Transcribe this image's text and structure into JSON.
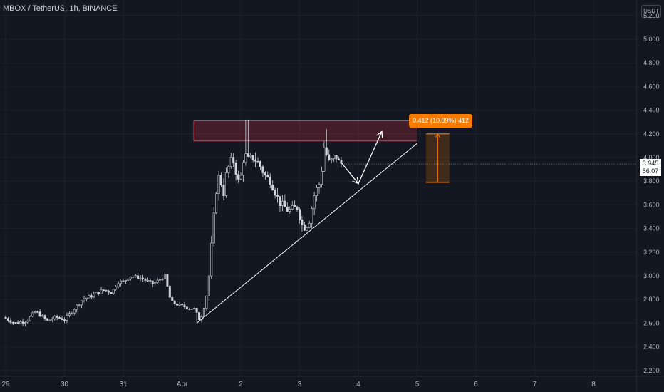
{
  "header": {
    "title": "MBOX / TetherUS, 1h, BINANCE",
    "currency": "USDT"
  },
  "price_badge": {
    "price": "3.945",
    "countdown": "56:07"
  },
  "measure": {
    "label": "0.412 (10.89%) 412",
    "from": 3.79,
    "to": 4.2
  },
  "colors": {
    "background": "#131722",
    "candle": "#d1d4dc",
    "grid": "#1e222d",
    "resistance_zone": "#f23645",
    "measure": "#f57c00",
    "trendline": "#ffffff"
  },
  "chart_data": {
    "type": "candlestick",
    "title": "MBOX / TetherUS, 1h, BINANCE",
    "ylabel": "USDT",
    "ylim": [
      2.15,
      5.3
    ],
    "y_ticks": [
      "2.200",
      "2.400",
      "2.600",
      "2.800",
      "3.000",
      "3.200",
      "3.400",
      "3.600",
      "3.800",
      "4.000",
      "4.200",
      "4.400",
      "4.600",
      "4.800",
      "5.000",
      "5.200"
    ],
    "x_ticks": [
      "29",
      "30",
      "31",
      "Apr",
      "2",
      "3",
      "4",
      "5",
      "6",
      "7",
      "8"
    ],
    "x_tick_day_index": [
      0,
      1,
      2,
      3,
      4,
      5,
      6,
      7,
      8,
      9,
      10
    ],
    "xlim_days": [
      0,
      10.5
    ],
    "price_path": [
      [
        0.0,
        2.65
      ],
      [
        0.2,
        2.6
      ],
      [
        0.4,
        2.62
      ],
      [
        0.55,
        2.7
      ],
      [
        0.75,
        2.62
      ],
      [
        0.9,
        2.65
      ],
      [
        1.05,
        2.63
      ],
      [
        1.2,
        2.72
      ],
      [
        1.35,
        2.8
      ],
      [
        1.5,
        2.83
      ],
      [
        1.7,
        2.88
      ],
      [
        1.85,
        2.86
      ],
      [
        1.95,
        2.95
      ],
      [
        2.05,
        2.95
      ],
      [
        2.15,
        3.0
      ],
      [
        2.35,
        2.98
      ],
      [
        2.55,
        2.93
      ],
      [
        2.75,
        3.0
      ],
      [
        2.85,
        2.78
      ],
      [
        3.0,
        2.75
      ],
      [
        3.15,
        2.73
      ],
      [
        3.25,
        2.72
      ],
      [
        3.35,
        2.62
      ],
      [
        3.45,
        2.8
      ],
      [
        3.5,
        3.0
      ],
      [
        3.55,
        3.3
      ],
      [
        3.6,
        3.6
      ],
      [
        3.65,
        3.85
      ],
      [
        3.7,
        3.8
      ],
      [
        3.75,
        3.7
      ],
      [
        3.8,
        3.88
      ],
      [
        3.9,
        4.0
      ],
      [
        4.0,
        3.8
      ],
      [
        4.05,
        3.85
      ],
      [
        4.1,
        4.05
      ],
      [
        4.15,
        3.98
      ],
      [
        4.25,
        4.0
      ],
      [
        4.35,
        3.95
      ],
      [
        4.45,
        3.85
      ],
      [
        4.55,
        3.8
      ],
      [
        4.7,
        3.62
      ],
      [
        4.85,
        3.55
      ],
      [
        5.0,
        3.58
      ],
      [
        5.1,
        3.4
      ],
      [
        5.2,
        3.45
      ],
      [
        5.3,
        3.7
      ],
      [
        5.4,
        3.8
      ],
      [
        5.45,
        4.1
      ],
      [
        5.55,
        3.95
      ],
      [
        5.65,
        4.02
      ],
      [
        5.72,
        3.95
      ]
    ],
    "resistance_zone": {
      "day_start": 3.2,
      "day_end": 7.0,
      "y_low": 4.14,
      "y_high": 4.31
    },
    "support_trendline": {
      "start": [
        3.25,
        2.6
      ],
      "end": [
        7.0,
        4.12
      ]
    },
    "projection_arrow": [
      [
        5.72,
        3.95
      ],
      [
        6.0,
        3.78
      ],
      [
        6.4,
        4.22
      ]
    ],
    "measure_box": {
      "day_start": 7.15,
      "day_end": 7.55,
      "y_low": 3.79,
      "y_high": 4.2
    }
  }
}
